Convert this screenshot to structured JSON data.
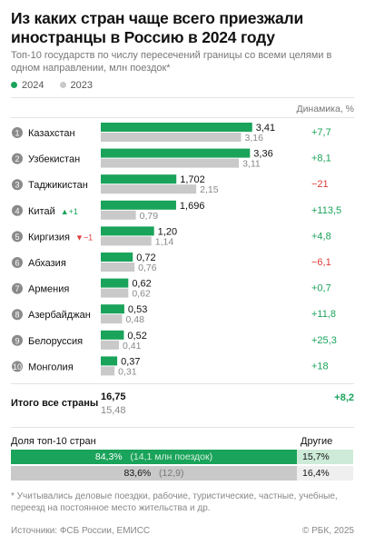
{
  "title": "Из каких стран чаще всего приезжали иностранцы в Россию в 2024 году",
  "subtitle": "Топ-10 государств по числу пересечений границы со всеми целями в одном направлении, млн поездок*",
  "legend": [
    {
      "label": "2024",
      "color": "#1aa35a"
    },
    {
      "label": "2023",
      "color": "#c9c9c9"
    }
  ],
  "dynamics_header": "Динамика, %",
  "chart_data": {
    "type": "bar",
    "orientation": "horizontal",
    "categories": [
      "Казахстан",
      "Узбекистан",
      "Таджикистан",
      "Китай",
      "Киргизия",
      "Абхазия",
      "Армения",
      "Азербайджан",
      "Белоруссия",
      "Монголия"
    ],
    "ranks": [
      "1",
      "2",
      "3",
      "4",
      "5",
      "6",
      "7",
      "8",
      "9",
      "10"
    ],
    "series": [
      {
        "name": "2024",
        "color": "#1aa35a",
        "values": [
          3.41,
          3.36,
          1.702,
          1.696,
          1.2,
          0.72,
          0.62,
          0.53,
          0.52,
          0.37
        ],
        "labels": [
          "3,41",
          "3,36",
          "1,702",
          "1,696",
          "1,20",
          "0,72",
          "0,62",
          "0,53",
          "0,52",
          "0,37"
        ]
      },
      {
        "name": "2023",
        "color": "#c9c9c9",
        "values": [
          3.16,
          3.11,
          2.15,
          0.79,
          1.14,
          0.76,
          0.62,
          0.48,
          0.41,
          0.31
        ],
        "labels": [
          "3,16",
          "3,11",
          "2,15",
          "0,79",
          "1,14",
          "0,76",
          "0,62",
          "0,48",
          "0,41",
          "0,31"
        ]
      }
    ],
    "dynamics": [
      "+7,7",
      "+8,1",
      "−21",
      "+113,5",
      "+4,8",
      "−6,1",
      "+0,7",
      "+11,8",
      "+25,3",
      "+18"
    ],
    "rank_changes": [
      "",
      "",
      "",
      "▲+1",
      "▼−1",
      "",
      "",
      "",
      "",
      ""
    ],
    "xlim": [
      0,
      3.5
    ]
  },
  "colors": {
    "positive": "#1aa35a",
    "negative": "#e03a3a",
    "bar_2024": "#1aa35a",
    "bar_2023": "#c9c9c9",
    "rank_circle": "#8a8a8a"
  },
  "total": {
    "label": "Итого все страны",
    "v2024": "16,75",
    "v2023": "15,48",
    "dynamics": "+8,2"
  },
  "share": {
    "header": "Доля топ-10 стран",
    "other_header": "Другие",
    "row_2024": {
      "pct": "84,3%",
      "note": "(14,1 млн поездок)",
      "other": "15,7%",
      "share_fraction": 0.843
    },
    "row_2023": {
      "pct": "83,6%",
      "note": "(12,9)",
      "other": "16,4%",
      "share_fraction": 0.836
    }
  },
  "footnote": "* Учитывались деловые поездки, рабочие, туристические, частные, учебные, переезд на постоянное место жительства и др.",
  "source": "Источники: ФСБ России, ЕМИСС",
  "copyright": "© РБК, 2025"
}
